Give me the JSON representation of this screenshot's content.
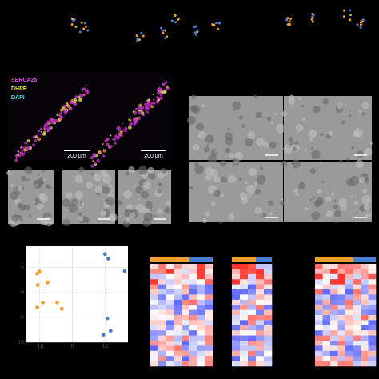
{
  "stain_legend": [
    "SERCA2a",
    "DHPR",
    "DAPI"
  ],
  "scale_bars": [
    "200 µm",
    "200 µm"
  ],
  "chart_data": {
    "type": "scatter",
    "series": [
      {
        "color": "#f0a030",
        "x": [
          -10.7,
          -10,
          -10.5,
          -7.6,
          -10.7,
          -9,
          -4.6,
          -3.2
        ],
        "values": [
          3.8,
          4.2,
          1.5,
          2,
          -3,
          -2,
          -2,
          -3.3
        ]
      },
      {
        "color": "#4a7fd0",
        "x": [
          10,
          11,
          16,
          10.7,
          9.5,
          11.7
        ],
        "values": [
          7.7,
          6.8,
          4.3,
          -5.2,
          -8.5,
          -7.7
        ]
      }
    ],
    "xlim": [
      -14,
      17
    ],
    "ylim": [
      -10,
      9.3
    ],
    "xticks": [
      -10,
      0,
      10
    ],
    "yticks": [
      5,
      0,
      -5,
      -10
    ],
    "grid": true
  }
}
